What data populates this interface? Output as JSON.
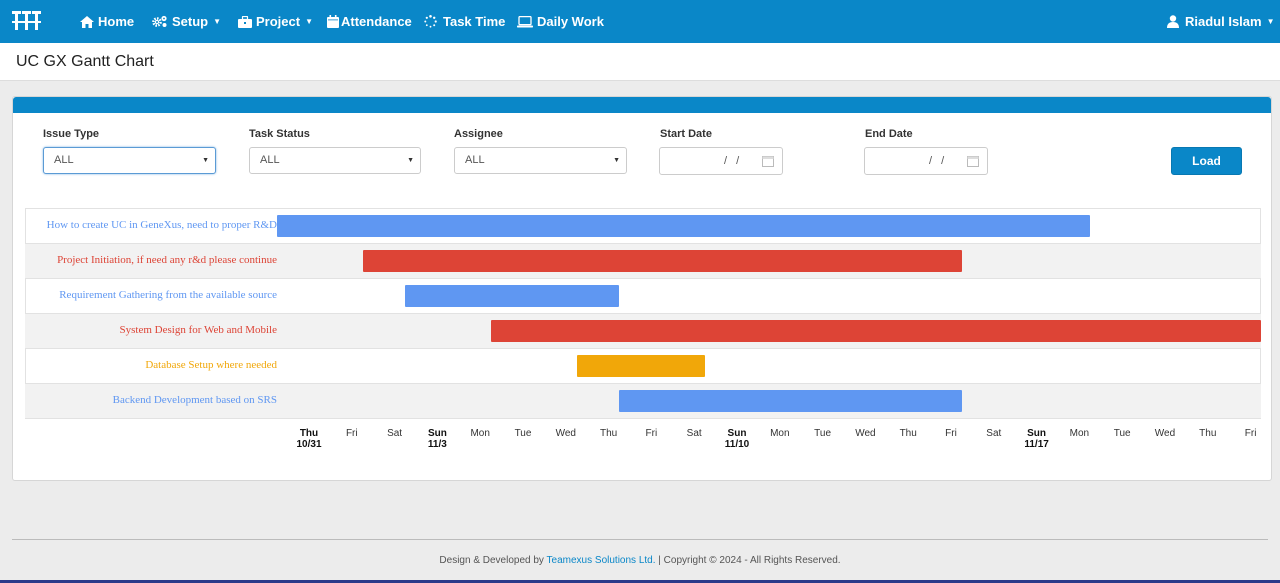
{
  "nav": {
    "items": [
      {
        "label": "Home",
        "icon": "home-icon"
      },
      {
        "label": "Setup",
        "icon": "gears-icon",
        "has_caret": true
      },
      {
        "label": "Project",
        "icon": "briefcase-icon",
        "has_caret": true
      },
      {
        "label": "Attendance",
        "icon": "calendar-icon"
      },
      {
        "label": "Task Time",
        "icon": "spinner-icon"
      },
      {
        "label": "Daily Work",
        "icon": "laptop-icon"
      }
    ],
    "user": {
      "name": "Riadul Islam",
      "icon": "user-icon"
    }
  },
  "page": {
    "title": "UC GX Gantt Chart"
  },
  "filters": {
    "issue_type": {
      "label": "Issue Type",
      "value": "ALL"
    },
    "task_status": {
      "label": "Task Status",
      "value": "ALL"
    },
    "assignee": {
      "label": "Assignee",
      "value": "ALL"
    },
    "start_date": {
      "label": "Start Date",
      "value": "/ /"
    },
    "end_date": {
      "label": "End Date",
      "value": "/ /"
    },
    "load_label": "Load"
  },
  "colors": {
    "brand": "#0a87c8",
    "blue": "#5f97f2",
    "red": "#dd4436",
    "orange": "#f1a709"
  },
  "gantt": {
    "tasks": [
      {
        "name": "How to create UC in GeneXus, need to proper R&D",
        "start": "2024-10-31",
        "end": "2024-11-19",
        "color": "#5f97f2"
      },
      {
        "name": "Project Initiation, if need any r&d please continue",
        "start": "2024-11-02",
        "end": "2024-11-16",
        "color": "#dd4436"
      },
      {
        "name": "Requirement Gathering from the available source",
        "start": "2024-11-03",
        "end": "2024-11-08",
        "color": "#5f97f2"
      },
      {
        "name": "System Design for Web and Mobile",
        "start": "2024-11-05",
        "end": "2024-11-28",
        "color": "#dd4436"
      },
      {
        "name": "Database Setup where needed",
        "start": "2024-11-07",
        "end": "2024-11-10",
        "color": "#f1a709"
      },
      {
        "name": "Backend Development based on SRS",
        "start": "2024-11-08",
        "end": "2024-11-16",
        "color": "#5f97f2"
      }
    ],
    "axis": [
      {
        "day": "Thu",
        "date": "10/31",
        "bold": true
      },
      {
        "day": "Fri"
      },
      {
        "day": "Sat"
      },
      {
        "day": "Sun",
        "date": "11/3",
        "bold": true
      },
      {
        "day": "Mon"
      },
      {
        "day": "Tue"
      },
      {
        "day": "Wed"
      },
      {
        "day": "Thu"
      },
      {
        "day": "Fri"
      },
      {
        "day": "Sat"
      },
      {
        "day": "Sun",
        "date": "11/10",
        "bold": true
      },
      {
        "day": "Mon"
      },
      {
        "day": "Tue"
      },
      {
        "day": "Wed"
      },
      {
        "day": "Thu"
      },
      {
        "day": "Fri"
      },
      {
        "day": "Sat"
      },
      {
        "day": "Sun",
        "date": "11/17",
        "bold": true
      },
      {
        "day": "Mon"
      },
      {
        "day": "Tue"
      },
      {
        "day": "Wed"
      },
      {
        "day": "Thu"
      },
      {
        "day": "Fri"
      }
    ]
  },
  "footer": {
    "prefix": "Design & Developed by",
    "company": "Teamexus Solutions Ltd.",
    "suffix": "| Copyright © 2024 - All Rights Reserved."
  }
}
